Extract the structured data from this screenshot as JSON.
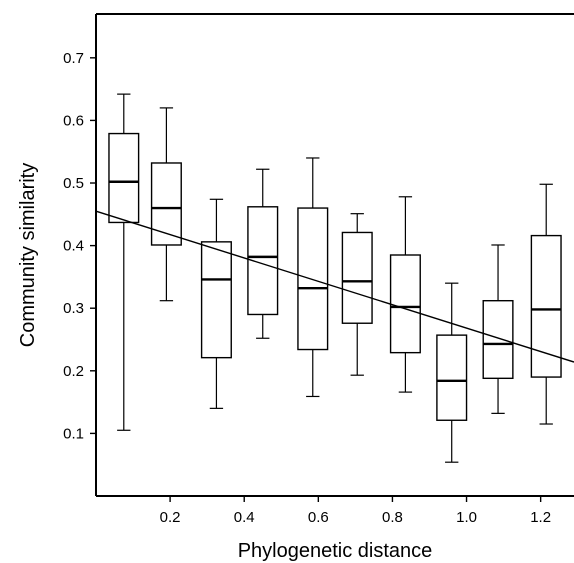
{
  "chart_data": {
    "type": "box",
    "xlabel": "Phylogenetic distance",
    "ylabel": "Community similarity",
    "xlim": [
      0,
      1.29
    ],
    "ylim": [
      0.0,
      0.77
    ],
    "x_ticks": [
      0.2,
      0.4,
      0.6,
      0.8,
      1.0,
      1.2
    ],
    "x_tick_labels": [
      "0.2",
      "0.4",
      "0.6",
      "0.8",
      "1.0",
      "1.2"
    ],
    "y_ticks": [
      0.1,
      0.2,
      0.3,
      0.4,
      0.5,
      0.6,
      0.7
    ],
    "y_tick_labels": [
      "0.1",
      "0.2",
      "0.3",
      "0.4",
      "0.5",
      "0.6",
      "0.7"
    ],
    "grid": false,
    "boxes": [
      {
        "x": 0.075,
        "min": 0.105,
        "q1": 0.437,
        "median": 0.502,
        "q3": 0.579,
        "max": 0.642
      },
      {
        "x": 0.19,
        "min": 0.312,
        "q1": 0.401,
        "median": 0.46,
        "q3": 0.532,
        "max": 0.62
      },
      {
        "x": 0.325,
        "min": 0.14,
        "q1": 0.221,
        "median": 0.346,
        "q3": 0.406,
        "max": 0.474
      },
      {
        "x": 0.45,
        "min": 0.252,
        "q1": 0.29,
        "median": 0.382,
        "q3": 0.462,
        "max": 0.522
      },
      {
        "x": 0.585,
        "min": 0.159,
        "q1": 0.234,
        "median": 0.332,
        "q3": 0.46,
        "max": 0.54
      },
      {
        "x": 0.705,
        "min": 0.193,
        "q1": 0.276,
        "median": 0.343,
        "q3": 0.421,
        "max": 0.451
      },
      {
        "x": 0.835,
        "min": 0.166,
        "q1": 0.229,
        "median": 0.302,
        "q3": 0.385,
        "max": 0.478
      },
      {
        "x": 0.96,
        "min": 0.054,
        "q1": 0.121,
        "median": 0.184,
        "q3": 0.257,
        "max": 0.34
      },
      {
        "x": 1.085,
        "min": 0.132,
        "q1": 0.188,
        "median": 0.243,
        "q3": 0.312,
        "max": 0.401
      },
      {
        "x": 1.215,
        "min": 0.115,
        "q1": 0.19,
        "median": 0.298,
        "q3": 0.416,
        "max": 0.498
      }
    ],
    "box_half_width": 0.04,
    "trend_line": {
      "x": [
        0.0,
        1.29
      ],
      "y": [
        0.455,
        0.214
      ]
    }
  }
}
